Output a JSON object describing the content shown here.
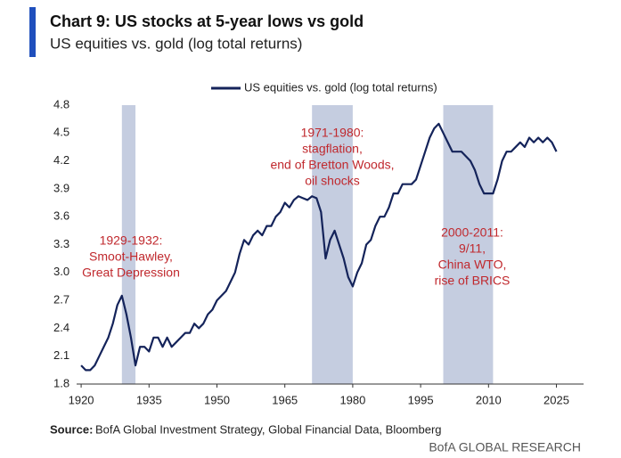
{
  "chart_data": {
    "type": "line",
    "title": "Chart 9: US stocks at 5-year lows vs gold",
    "subtitle": "US equities vs. gold (log total returns)",
    "source_label": "Source:",
    "source": "BofA Global Investment Strategy, Global Financial Data, Bloomberg",
    "footer": "BofA GLOBAL RESEARCH",
    "x": [
      1920,
      1921,
      1922,
      1923,
      1924,
      1925,
      1926,
      1927,
      1928,
      1929,
      1930,
      1931,
      1932,
      1933,
      1934,
      1935,
      1936,
      1937,
      1938,
      1939,
      1940,
      1941,
      1942,
      1943,
      1944,
      1945,
      1946,
      1947,
      1948,
      1949,
      1950,
      1951,
      1952,
      1953,
      1954,
      1955,
      1956,
      1957,
      1958,
      1959,
      1960,
      1961,
      1962,
      1963,
      1964,
      1965,
      1966,
      1967,
      1968,
      1969,
      1970,
      1971,
      1972,
      1973,
      1974,
      1975,
      1976,
      1977,
      1978,
      1979,
      1980,
      1981,
      1982,
      1983,
      1984,
      1985,
      1986,
      1987,
      1988,
      1989,
      1990,
      1991,
      1992,
      1993,
      1994,
      1995,
      1996,
      1997,
      1998,
      1999,
      2000,
      2001,
      2002,
      2003,
      2004,
      2005,
      2006,
      2007,
      2008,
      2009,
      2010,
      2011,
      2012,
      2013,
      2014,
      2015,
      2016,
      2017,
      2018,
      2019,
      2020,
      2021,
      2022,
      2023,
      2024,
      2025
    ],
    "series": [
      {
        "name": "US equities vs. gold (log total returns)",
        "color": "#14235a",
        "values": [
          2.0,
          1.95,
          1.95,
          2.0,
          2.1,
          2.2,
          2.3,
          2.45,
          2.65,
          2.75,
          2.55,
          2.3,
          2.0,
          2.2,
          2.2,
          2.15,
          2.3,
          2.3,
          2.2,
          2.3,
          2.2,
          2.25,
          2.3,
          2.35,
          2.35,
          2.45,
          2.4,
          2.45,
          2.55,
          2.6,
          2.7,
          2.75,
          2.8,
          2.9,
          3.0,
          3.2,
          3.35,
          3.3,
          3.4,
          3.45,
          3.4,
          3.5,
          3.5,
          3.6,
          3.65,
          3.75,
          3.7,
          3.78,
          3.82,
          3.8,
          3.78,
          3.82,
          3.8,
          3.65,
          3.15,
          3.35,
          3.45,
          3.3,
          3.15,
          2.95,
          2.85,
          3.0,
          3.1,
          3.3,
          3.35,
          3.5,
          3.6,
          3.6,
          3.7,
          3.85,
          3.85,
          3.95,
          3.95,
          3.95,
          4.0,
          4.15,
          4.3,
          4.45,
          4.55,
          4.6,
          4.5,
          4.4,
          4.3,
          4.3,
          4.3,
          4.25,
          4.2,
          4.1,
          3.95,
          3.85,
          3.85,
          3.85,
          4.0,
          4.2,
          4.3,
          4.3,
          4.35,
          4.4,
          4.35,
          4.45,
          4.4,
          4.45,
          4.4,
          4.45,
          4.4,
          4.3
        ]
      }
    ],
    "shaded_periods": [
      [
        1929,
        1932
      ],
      [
        1971,
        1980
      ],
      [
        2000,
        2011
      ]
    ],
    "annotations": [
      [
        "1929-1932:",
        "Smoot-Hawley,",
        "Great Depression"
      ],
      [
        "1971-1980:",
        "stagflation,",
        "end of Bretton Woods,",
        "oil shocks"
      ],
      [
        "2000-2011:",
        "9/11,",
        "China WTO,",
        "rise of BRICS"
      ]
    ],
    "xlim": [
      1919,
      2031
    ],
    "ylim": [
      1.8,
      4.8
    ],
    "xticks": [
      1920,
      1935,
      1950,
      1965,
      1980,
      1995,
      2010,
      2025
    ],
    "yticks": [
      1.8,
      2.1,
      2.4,
      2.7,
      {
        "value": 3,
        "label": "3.0"
      },
      3.3,
      3.6,
      3.9,
      4.2,
      4.5,
      4.8
    ],
    "legend": "top"
  }
}
